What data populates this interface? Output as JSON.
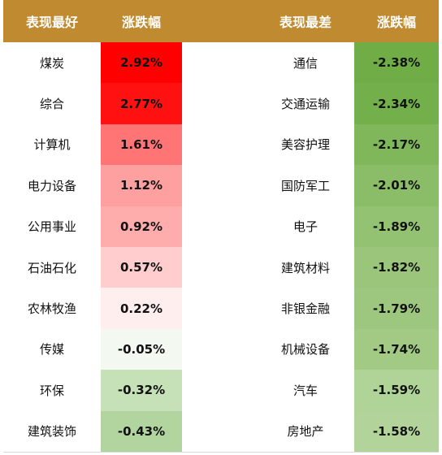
{
  "chart_data": {
    "type": "table",
    "headers": {
      "best_name": "表现最好",
      "best_change": "涨跌幅",
      "worst_name": "表现最差",
      "worst_change": "涨跌幅"
    },
    "best": [
      {
        "name": "煤炭",
        "change": "2.92%",
        "value": 2.92,
        "color": "#ff0000"
      },
      {
        "name": "综合",
        "change": "2.77%",
        "value": 2.77,
        "color": "#ff1111"
      },
      {
        "name": "计算机",
        "change": "1.61%",
        "value": 1.61,
        "color": "#ff7575"
      },
      {
        "name": "电力设备",
        "change": "1.12%",
        "value": 1.12,
        "color": "#ffa0a0"
      },
      {
        "name": "公用事业",
        "change": "0.92%",
        "value": 0.92,
        "color": "#ffacac"
      },
      {
        "name": "石油石化",
        "change": "0.57%",
        "value": 0.57,
        "color": "#ffcdcd"
      },
      {
        "name": "农林牧渔",
        "change": "0.22%",
        "value": 0.22,
        "color": "#ffeeee"
      },
      {
        "name": "传媒",
        "change": "-0.05%",
        "value": -0.05,
        "color": "#f3f8f0"
      },
      {
        "name": "环保",
        "change": "-0.32%",
        "value": -0.32,
        "color": "#c6e0b8"
      },
      {
        "name": "建筑装饰",
        "change": "-0.43%",
        "value": -0.43,
        "color": "#b2d5a0"
      }
    ],
    "worst": [
      {
        "name": "通信",
        "change": "-2.38%",
        "value": -2.38,
        "color": "#70ad47"
      },
      {
        "name": "交通运输",
        "change": "-2.34%",
        "value": -2.34,
        "color": "#73af4b"
      },
      {
        "name": "美容护理",
        "change": "-2.17%",
        "value": -2.17,
        "color": "#80b75a"
      },
      {
        "name": "国防军工",
        "change": "-2.01%",
        "value": -2.01,
        "color": "#8bbd68"
      },
      {
        "name": "电子",
        "change": "-1.89%",
        "value": -1.89,
        "color": "#94c273"
      },
      {
        "name": "建筑材料",
        "change": "-1.82%",
        "value": -1.82,
        "color": "#9ac57a"
      },
      {
        "name": "非银金融",
        "change": "-1.79%",
        "value": -1.79,
        "color": "#9dc77e"
      },
      {
        "name": "机械设备",
        "change": "-1.74%",
        "value": -1.74,
        "color": "#a2ca84"
      },
      {
        "name": "汽车",
        "change": "-1.59%",
        "value": -1.59,
        "color": "#b0d397"
      },
      {
        "name": "房地产",
        "change": "-1.58%",
        "value": -1.58,
        "color": "#b2d49a"
      }
    ]
  }
}
